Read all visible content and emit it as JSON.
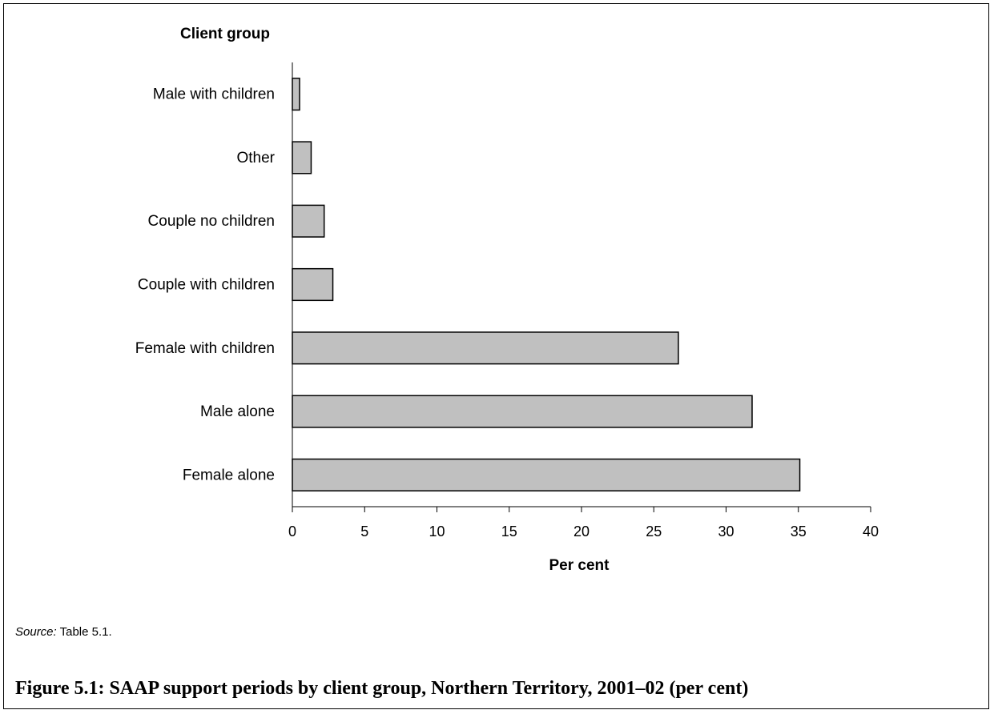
{
  "chart_data": {
    "type": "bar",
    "orientation": "horizontal",
    "categories": [
      "Male with children",
      "Other",
      "Couple no children",
      "Couple with children",
      "Female with children",
      "Male alone",
      "Female alone"
    ],
    "values": [
      0.5,
      1.3,
      2.2,
      2.8,
      26.7,
      31.8,
      35.1
    ],
    "xlabel": "Per cent",
    "ylabel": "Client group",
    "xlim": [
      0,
      40
    ],
    "xticks": [
      "0",
      "5",
      "10",
      "15",
      "20",
      "25",
      "30",
      "35",
      "40"
    ],
    "grid": false,
    "legend": "none",
    "bar_color": "#c0c0c0",
    "bar_outline": "#000000"
  },
  "source": {
    "label": "Source:",
    "text": " Table 5.1."
  },
  "caption": "Figure 5.1: SAAP support periods by client group, Northern Territory, 2001–02 (per cent)"
}
